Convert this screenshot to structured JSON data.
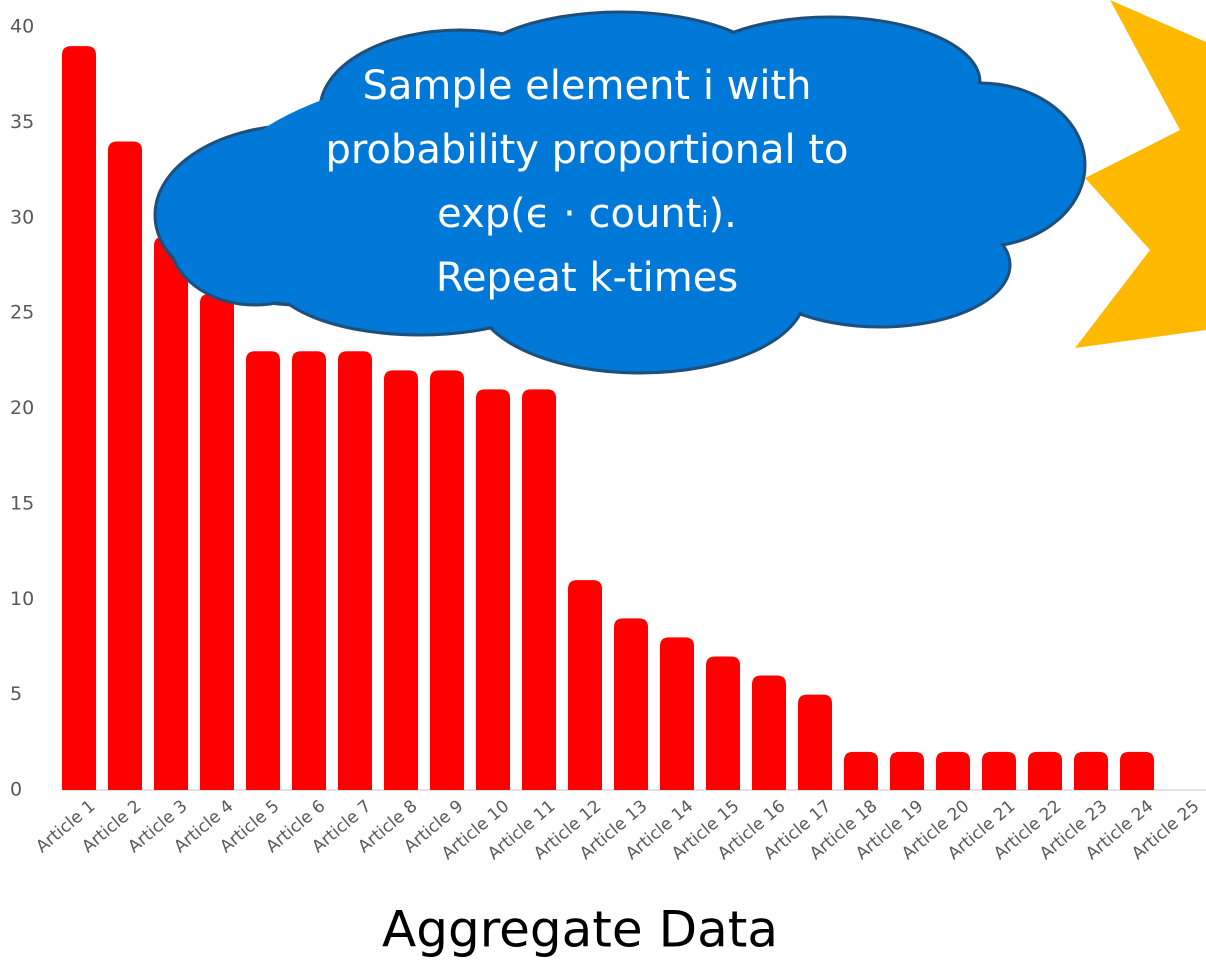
{
  "chart_data": {
    "type": "bar",
    "title": "Aggregate Data",
    "categories": [
      "Article 1",
      "Article 2",
      "Article 3",
      "Article 4",
      "Article 5",
      "Article 6",
      "Article 7",
      "Article 8",
      "Article 9",
      "Article 10",
      "Article 11",
      "Article 12",
      "Article 13",
      "Article 14",
      "Article 15",
      "Article 16",
      "Article 17",
      "Article 18",
      "Article 19",
      "Article 20",
      "Article 21",
      "Article 22",
      "Article 23",
      "Article 24",
      "Article 25"
    ],
    "values": [
      39,
      34,
      29,
      26,
      23,
      23,
      23,
      22,
      22,
      21,
      21,
      11,
      9,
      8,
      7,
      6,
      5,
      2,
      2,
      2,
      2,
      2,
      2,
      2,
      0
    ],
    "color": "#ff0000",
    "ylim": [
      0,
      40
    ],
    "yticks": [
      0,
      5,
      10,
      15,
      20,
      25,
      30,
      35,
      40
    ],
    "grid": false,
    "annotation": [
      "Sample element i with",
      "probability proportional to",
      "exp(ϵ · countᵢ).",
      "Repeat k-times"
    ]
  }
}
